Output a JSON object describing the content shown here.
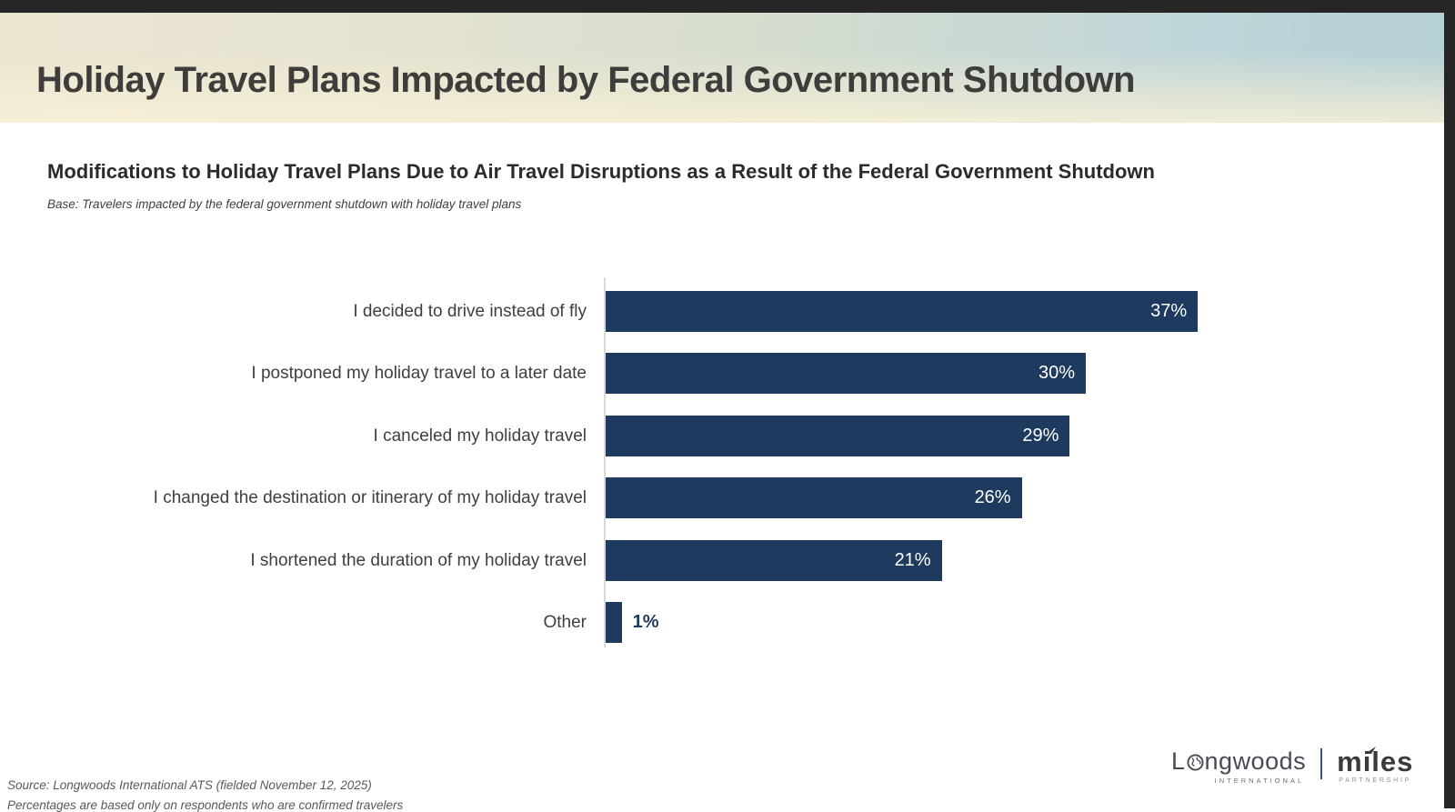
{
  "header": {
    "title": "Holiday Travel Plans Impacted by Federal Government Shutdown"
  },
  "chart_data": {
    "type": "bar",
    "orientation": "horizontal",
    "title": "Modifications to Holiday Travel Plans Due to Air Travel Disruptions as a Result of the Federal Government Shutdown",
    "base_note": "Base: Travelers impacted by the federal government shutdown with holiday travel plans",
    "categories": [
      "I decided to drive instead of fly",
      "I postponed my holiday travel to a later date",
      "I canceled my holiday travel",
      "I changed the destination or itinerary of my holiday travel",
      "I shortened the duration of my holiday travel",
      "Other"
    ],
    "values": [
      37,
      30,
      29,
      26,
      21,
      1
    ],
    "value_suffix": "%",
    "xlim": [
      0,
      40
    ],
    "grid": false,
    "legend": "none",
    "bar_color": "#1f3a5f",
    "value_label_color_inside": "#ffffff",
    "value_label_color_outside": "#1f3a5f"
  },
  "footer": {
    "source_line1": "Source: Longwoods International ATS (fielded November 12, 2025)",
    "source_line2": "Percentages are based only on respondents who are confirmed travelers",
    "logos": {
      "longwoods": {
        "part1": "L",
        "part2": "ngwoods",
        "subtitle": "INTERNATIONAL"
      },
      "miles": {
        "name": "miles",
        "subtitle": "PARTNERSHIP"
      }
    }
  }
}
